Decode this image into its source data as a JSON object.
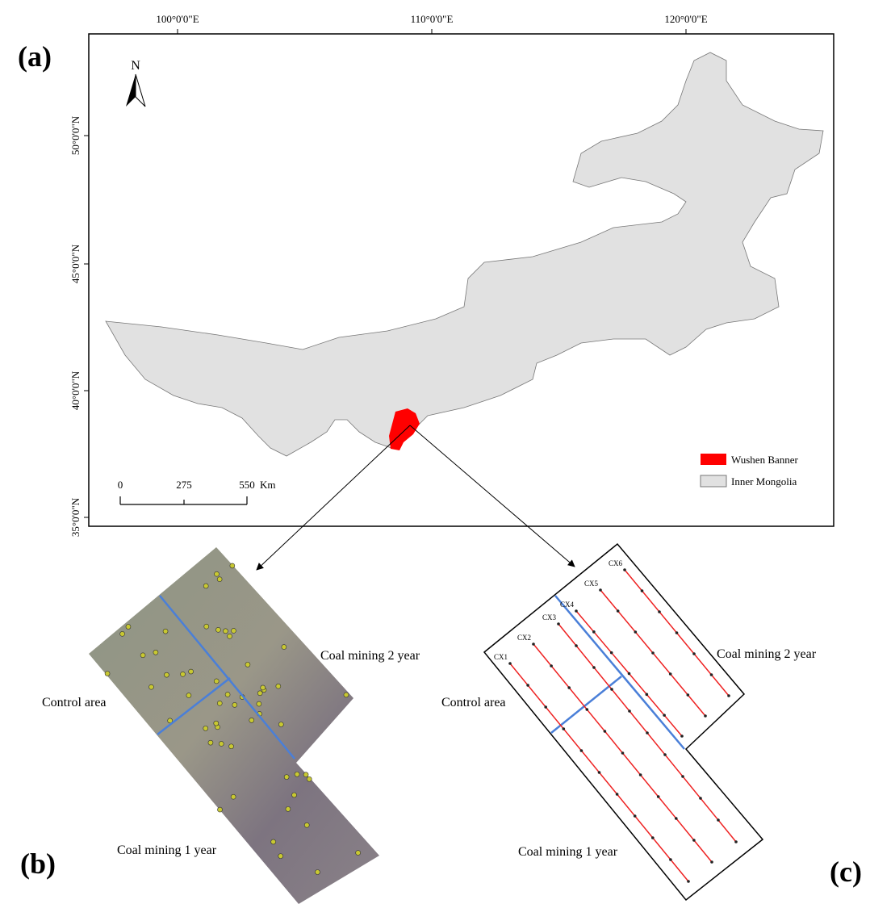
{
  "panel_labels": {
    "a": "(a)",
    "b": "(b)",
    "c": "(c)"
  },
  "map": {
    "north": "N",
    "lon_labels": [
      "100°0'0\"E",
      "110°0'0\"E",
      "120°0'0\"E"
    ],
    "lat_labels": [
      "50°0'0\"N",
      "45°0'0\"N",
      "40°0'0\"N",
      "35°0'0\"N"
    ],
    "scale_bar": {
      "labels": [
        "0",
        "275",
        "550"
      ],
      "unit": "Km"
    },
    "legend": [
      "Wushen Banner",
      "Inner Mongolia"
    ]
  },
  "panel_b": {
    "upper_right": "Coal mining 2 year",
    "left": "Control area",
    "bottom": "Coal mining 1 year"
  },
  "panel_c": {
    "upper_right": "Coal mining 2 year",
    "left": "Control area",
    "bottom": "Coal mining 1 year",
    "transects": [
      "CX1",
      "CX2",
      "CX3",
      "CX4",
      "CX5",
      "CX6"
    ]
  }
}
